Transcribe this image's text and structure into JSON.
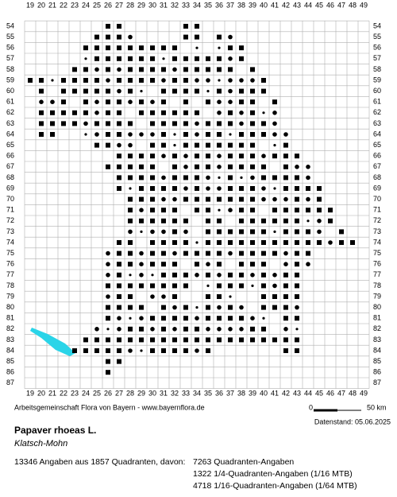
{
  "map": {
    "x_labels": [
      19,
      20,
      21,
      22,
      23,
      24,
      25,
      26,
      27,
      28,
      29,
      30,
      31,
      32,
      33,
      34,
      35,
      36,
      37,
      38,
      39,
      40,
      41,
      42,
      43,
      44,
      45,
      46,
      47,
      48,
      49
    ],
    "y_labels": [
      54,
      55,
      56,
      57,
      58,
      59,
      60,
      61,
      62,
      63,
      64,
      65,
      66,
      67,
      68,
      69,
      70,
      71,
      72,
      73,
      74,
      75,
      76,
      77,
      78,
      79,
      80,
      81,
      82,
      83,
      84,
      85,
      86,
      87
    ],
    "credit": "Arbeitsgemeinschaft Flora von Bayern - www.bayernflora.de",
    "scale_start": "0",
    "scale_end": "50 km",
    "date": "Datenstand: 05.06.2025"
  },
  "species": {
    "name": "Papaver rhoeas L.",
    "common_name": "Klatsch-Mohn"
  },
  "stats": {
    "summary": "13346 Angaben aus 1857 Quadranten, davon:",
    "lines": [
      "7263 Quadranten-Angaben",
      "1322 1/4-Quadranten-Angaben (1/16 MTB)",
      "4718 1/16-Quadranten-Angaben (1/64 MTB)"
    ]
  }
}
